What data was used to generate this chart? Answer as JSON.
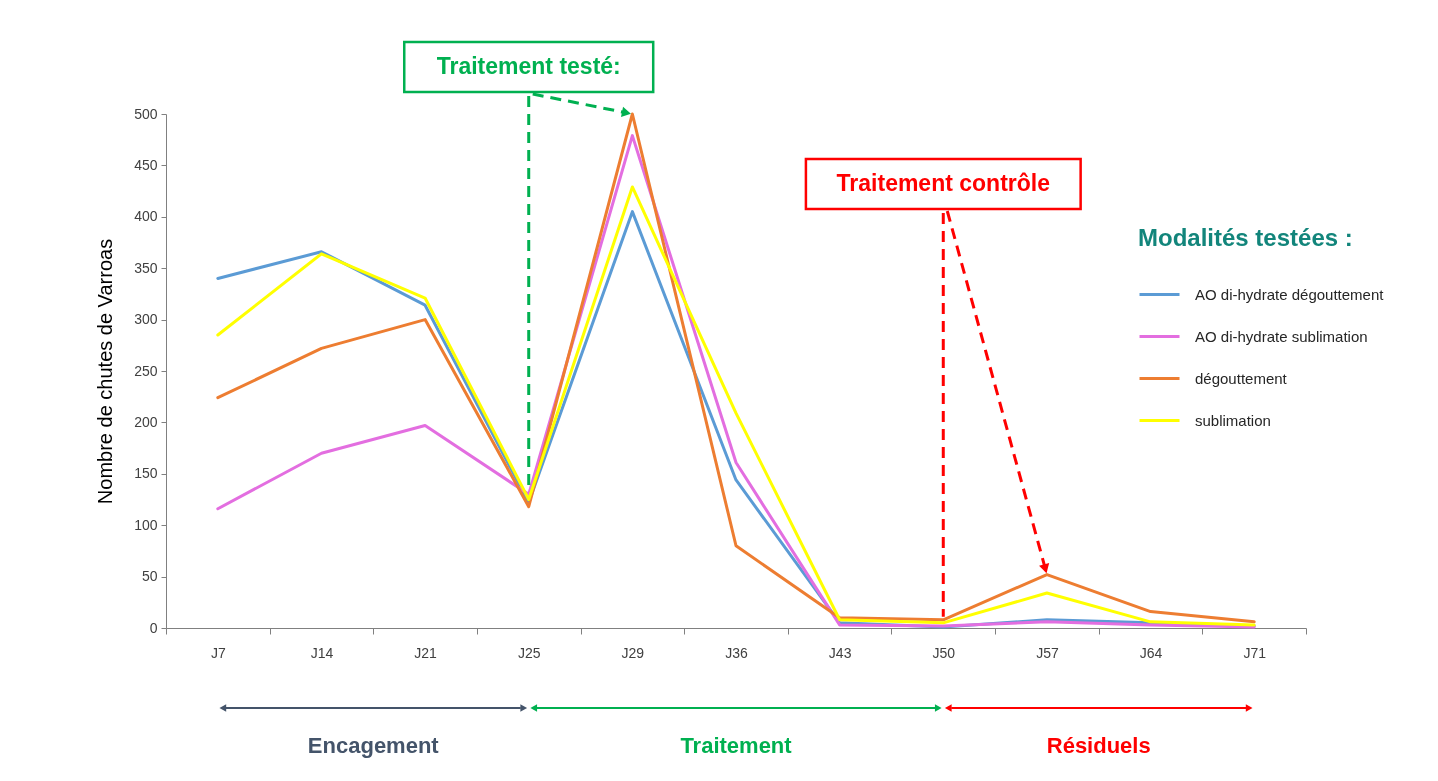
{
  "chart_data": {
    "type": "line",
    "ylabel": "Nombre de chutes de Varroas",
    "legend_title": "Modalités testées :",
    "categories": [
      "J7",
      "J14",
      "J21",
      "J25",
      "J29",
      "J36",
      "J43",
      "J50",
      "J57",
      "J64",
      "J71"
    ],
    "series": [
      {
        "name": "AO di-hydrate dégouttement",
        "color": "#5b9bd5",
        "values": [
          340,
          366,
          314,
          122,
          405,
          144,
          5,
          1,
          8,
          5,
          2
        ]
      },
      {
        "name": "AO di-hydrate sublimation",
        "color": "#e36ee0",
        "values": [
          116,
          170,
          197,
          130,
          479,
          161,
          3,
          2,
          6,
          3,
          1
        ]
      },
      {
        "name": "dégouttement",
        "color": "#ed7d31",
        "values": [
          224,
          272,
          300,
          118,
          500,
          80,
          10,
          8,
          52,
          16,
          6
        ]
      },
      {
        "name": "sublimation",
        "color": "#ffff00",
        "values": [
          285,
          364,
          321,
          125,
          429,
          209,
          8,
          5,
          34,
          6,
          3
        ]
      }
    ],
    "ylim": [
      0,
      500
    ],
    "yticks": [
      0,
      50,
      100,
      150,
      200,
      250,
      300,
      350,
      400,
      450,
      500
    ],
    "legend": "right",
    "ref_lines": [
      {
        "axis": "x",
        "value": "J25",
        "color": "#00b050",
        "line_style": "dashed"
      },
      {
        "axis": "x",
        "value": "J50",
        "color": "#ff0000",
        "line_style": "dashed"
      }
    ],
    "annotations": [
      {
        "text": "Traitement testé:",
        "x": "J29",
        "y": 500
      },
      {
        "text": "Traitement contrôle",
        "x": "J57",
        "y": 52
      },
      "Encagement",
      "Traitement",
      "Résiduels"
    ]
  }
}
